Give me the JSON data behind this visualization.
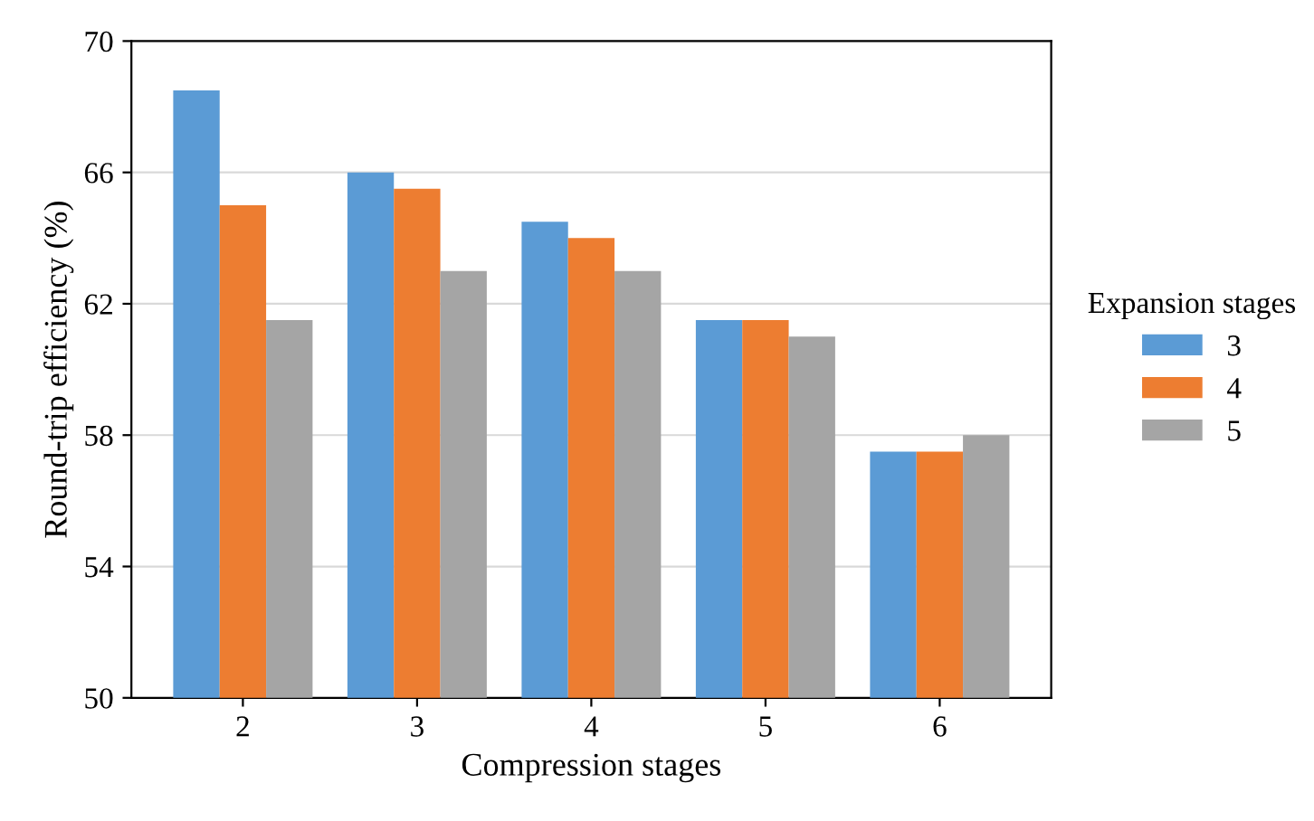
{
  "chart_data": {
    "type": "bar",
    "xlabel": "Compression stages",
    "ylabel": "Round-trip efficiency (%)",
    "legend_title": "Expansion stages",
    "categories": [
      "2",
      "3",
      "4",
      "5",
      "6"
    ],
    "series": [
      {
        "name": "3",
        "color": "#5b9bd5",
        "values": [
          68.5,
          66,
          64.5,
          61.5,
          57.5
        ]
      },
      {
        "name": "4",
        "color": "#ed7d31",
        "values": [
          65,
          65.5,
          64,
          61.5,
          57.5
        ]
      },
      {
        "name": "5",
        "color": "#a5a5a5",
        "values": [
          61.5,
          63,
          63,
          61,
          58
        ]
      }
    ],
    "ylim": [
      50,
      70
    ],
    "yticks": [
      50,
      54,
      58,
      62,
      66,
      70
    ],
    "grid": "y",
    "legend": "right"
  }
}
